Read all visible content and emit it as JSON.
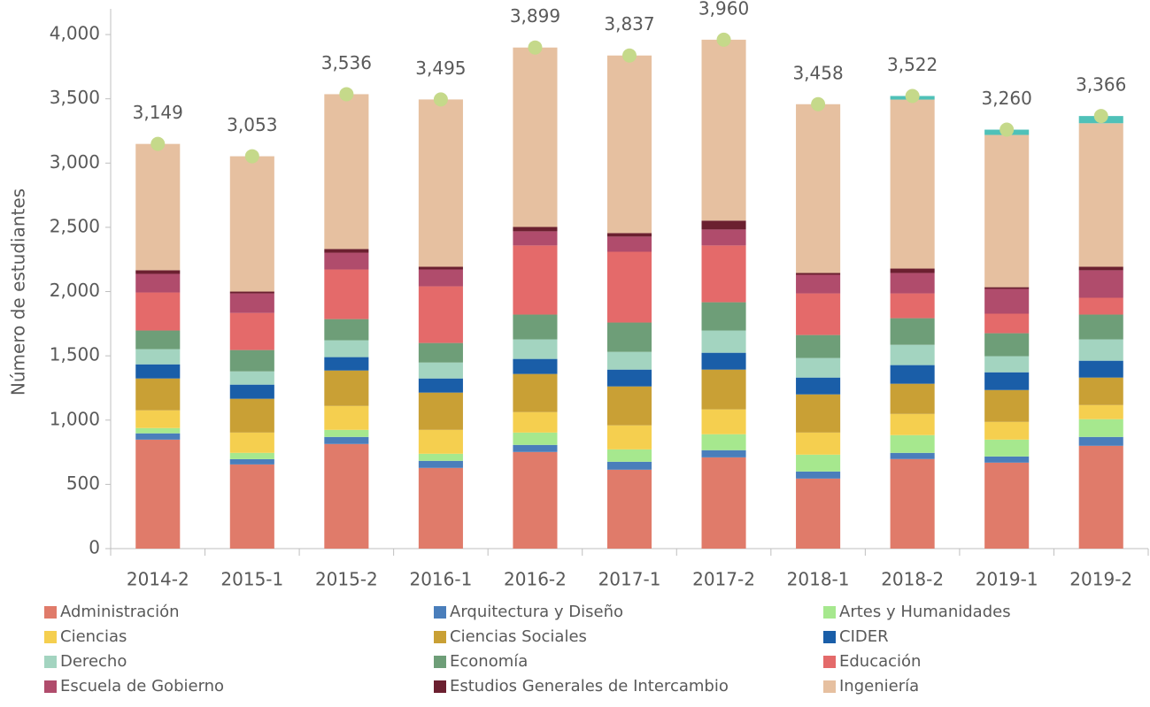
{
  "chart_data": {
    "type": "stacked-bar",
    "y_label": "Número de estudiantes",
    "categories": [
      "2014-2",
      "2015-1",
      "2015-2",
      "2016-1",
      "2016-2",
      "2017-1",
      "2017-2",
      "2018-1",
      "2018-2",
      "2019-1",
      "2019-2"
    ],
    "ylim": [
      0,
      4200
    ],
    "yticks": [
      0,
      500,
      {
        "value": 1000,
        "label": "1,000"
      },
      {
        "value": 1500,
        "label": "1,500"
      },
      {
        "value": 2000,
        "label": "2,000"
      },
      {
        "value": 2500,
        "label": "2,500"
      },
      {
        "value": 3000,
        "label": "3,000"
      },
      {
        "value": 3500,
        "label": "3,500"
      },
      {
        "value": 4000,
        "label": "4,000"
      }
    ],
    "grid": false,
    "legend": "bottom",
    "series": [
      {
        "name": "Administración",
        "color": "#e07b6a",
        "values": [
          848,
          655,
          814,
          628,
          752,
          614,
          710,
          545,
          697,
          669,
          800
        ]
      },
      {
        "name": "Arquitectura y Diseño",
        "color": "#4a7ebb",
        "values": [
          49,
          41,
          55,
          55,
          55,
          62,
          56,
          55,
          48,
          48,
          69
        ]
      },
      {
        "name": "Artes y Humanidades",
        "color": "#a6e88e",
        "values": [
          41,
          49,
          55,
          55,
          96,
          96,
          124,
          131,
          138,
          131,
          138
        ]
      },
      {
        "name": "Ciencias",
        "color": "#f5cf4f",
        "values": [
          138,
          158,
          186,
          186,
          159,
          187,
          193,
          172,
          165,
          138,
          110
        ]
      },
      {
        "name": "Ciencias Sociales",
        "color": "#c9a035",
        "values": [
          248,
          263,
          276,
          290,
          297,
          303,
          310,
          297,
          235,
          248,
          214
        ]
      },
      {
        "name": "CIDER",
        "color": "#1a5ea8",
        "values": [
          110,
          110,
          104,
          110,
          117,
          131,
          131,
          131,
          145,
          138,
          131
        ]
      },
      {
        "name": "Derecho",
        "color": "#a3d4c0",
        "values": [
          118,
          103,
          131,
          124,
          152,
          138,
          173,
          152,
          158,
          125,
          166
        ]
      },
      {
        "name": "Economía",
        "color": "#6e9e78",
        "values": [
          145,
          166,
          165,
          152,
          193,
          228,
          220,
          179,
          207,
          179,
          193
        ]
      },
      {
        "name": "Educación",
        "color": "#e46a6a",
        "values": [
          296,
          289,
          386,
          441,
          538,
          551,
          442,
          324,
          193,
          152,
          131
        ]
      },
      {
        "name": "Escuela de Gobierno",
        "color": "#b04c6c",
        "values": [
          145,
          152,
          131,
          131,
          110,
          118,
          124,
          145,
          159,
          193,
          214
        ]
      },
      {
        "name": "Estudios Generales de Intercambio",
        "color": "#6b2030",
        "values": [
          28,
          14,
          28,
          21,
          34,
          27,
          69,
          14,
          34,
          13,
          27
        ]
      },
      {
        "name": "Ingeniería",
        "color": "#e6c0a0",
        "values": [
          983,
          1053,
          1205,
          1302,
          1396,
          1382,
          1408,
          1313,
          1315,
          1185,
          1117
        ]
      },
      {
        "name": null,
        "color": "#4fc1b8",
        "values": [
          null,
          null,
          null,
          null,
          null,
          null,
          null,
          null,
          28,
          41,
          56
        ]
      }
    ],
    "totals": {
      "color": "#c5d98a",
      "values": [
        3149,
        3053,
        3536,
        3495,
        3899,
        3837,
        3960,
        3458,
        3522,
        3260,
        3366
      ],
      "value_labels": [
        "3,149",
        "3,053",
        "3,536",
        "3,495",
        "3,899",
        "3,837",
        "3,960",
        "3,458",
        "3,522",
        "3,260",
        "3,366"
      ]
    }
  }
}
